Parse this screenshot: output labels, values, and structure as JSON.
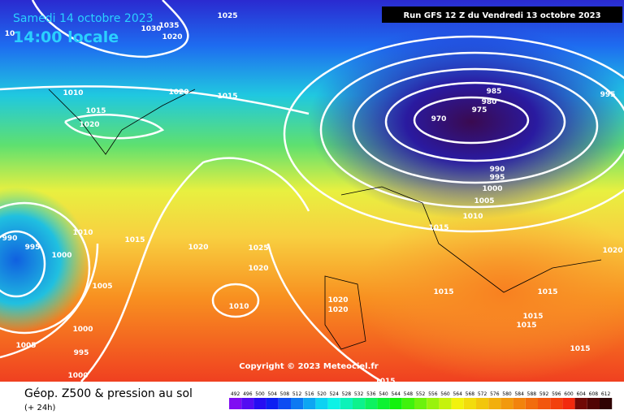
{
  "header": {
    "date": "Samedi 14 octobre 2023",
    "time": "14:00 locale",
    "run": "Run GFS 12 Z du Vendredi 13 octobre 2023"
  },
  "copyright": "Copyright © 2023 Meteociel.fr",
  "footer": {
    "title": "Géop. Z500 & pression au sol",
    "lead": "(+ 24h)"
  },
  "isobar_labels": [
    1025,
    1035,
    1030,
    1020,
    10,
    1010,
    1015,
    1020,
    1020,
    1015,
    985,
    980,
    975,
    970,
    995,
    990,
    995,
    1000,
    1005,
    1010,
    1015,
    1010,
    1015,
    1020,
    1025,
    990,
    995,
    1000,
    1020,
    1020,
    1005,
    1015,
    1015,
    1010,
    1020,
    1020,
    1015,
    1015,
    1000,
    1005,
    995,
    1000,
    1015,
    1015
  ],
  "scale": [
    492,
    496,
    500,
    504,
    508,
    512,
    516,
    520,
    524,
    528,
    532,
    536,
    540,
    544,
    548,
    552,
    556,
    560,
    564,
    568,
    572,
    576,
    580,
    584,
    588,
    592,
    596,
    600,
    604,
    608,
    612
  ]
}
